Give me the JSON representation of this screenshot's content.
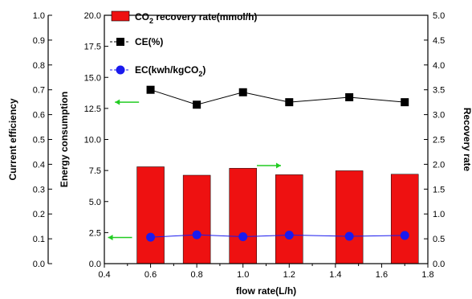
{
  "chart_data": {
    "type": "bar",
    "x_axis": {
      "label": "flow rate(L/h)",
      "range": [
        0.4,
        1.8
      ],
      "ticks": [
        0.4,
        0.6,
        0.8,
        1.0,
        1.2,
        1.4,
        1.6,
        1.8
      ],
      "tick_labels": [
        "0.4",
        "0.6",
        "0.8",
        "1.0",
        "1.2",
        "1.4",
        "1.6",
        "1.8"
      ]
    },
    "y_axes": {
      "current_efficiency": {
        "label": "Current efficiency",
        "range": [
          0,
          1
        ],
        "tick_labels": [
          "0.0",
          "0.1",
          "0.2",
          "0.3",
          "0.4",
          "0.5",
          "0.6",
          "0.7",
          "0.8",
          "0.9",
          "1.0"
        ]
      },
      "energy_consumption": {
        "label": "Energy consumption",
        "range": [
          0,
          20
        ],
        "tick_labels": [
          "0.0",
          "2.5",
          "5.0",
          "7.5",
          "10.0",
          "12.5",
          "15.0",
          "17.5",
          "20.0"
        ]
      },
      "recovery_rate": {
        "label": "Recovery rate",
        "range": [
          0,
          5
        ],
        "tick_labels": [
          "0.0",
          "0.5",
          "1.0",
          "1.5",
          "2.0",
          "2.5",
          "3.0",
          "3.5",
          "4.0",
          "4.5",
          "5.0"
        ]
      }
    },
    "series": [
      {
        "name": "CO2 recovery rate(mmol/h)",
        "legend_main": "CO",
        "legend_sub": "2",
        "legend_rest": " recovery rate(mmol/h)",
        "kind": "bar",
        "axis": "recovery_rate",
        "color": "#ee1111",
        "x": [
          0.6,
          0.8,
          1.0,
          1.2,
          1.46,
          1.7
        ],
        "values": [
          1.95,
          1.78,
          1.92,
          1.79,
          1.87,
          1.8
        ]
      },
      {
        "name": "CE(%)",
        "legend_main": "CE(%)",
        "kind": "line",
        "axis": "current_efficiency",
        "color": "#000000",
        "marker": "square",
        "x": [
          0.6,
          0.8,
          1.0,
          1.2,
          1.46,
          1.7
        ],
        "values": [
          0.7,
          0.64,
          0.69,
          0.65,
          0.67,
          0.65
        ]
      },
      {
        "name": "EC(kwh/kgCO2)",
        "legend_main": "EC(kwh/kgCO",
        "legend_sub": "2",
        "legend_rest": ")",
        "kind": "line",
        "axis": "energy_consumption",
        "color": "#1a1aee",
        "marker": "circle",
        "x": [
          0.6,
          0.8,
          1.0,
          1.2,
          1.46,
          1.7
        ],
        "values": [
          2.13,
          2.32,
          2.17,
          2.3,
          2.2,
          2.27
        ]
      }
    ],
    "annotations": [
      {
        "type": "arrow",
        "direction": "left",
        "color": "#22cc22",
        "x": 0.55,
        "y_energy": 13.0
      },
      {
        "type": "arrow",
        "direction": "right",
        "color": "#22cc22",
        "x": 1.06,
        "y_energy": 7.9
      },
      {
        "type": "arrow",
        "direction": "left",
        "color": "#22cc22",
        "x": 0.52,
        "y_energy": 2.1
      }
    ],
    "grid": false,
    "legend_position": "top-left"
  }
}
